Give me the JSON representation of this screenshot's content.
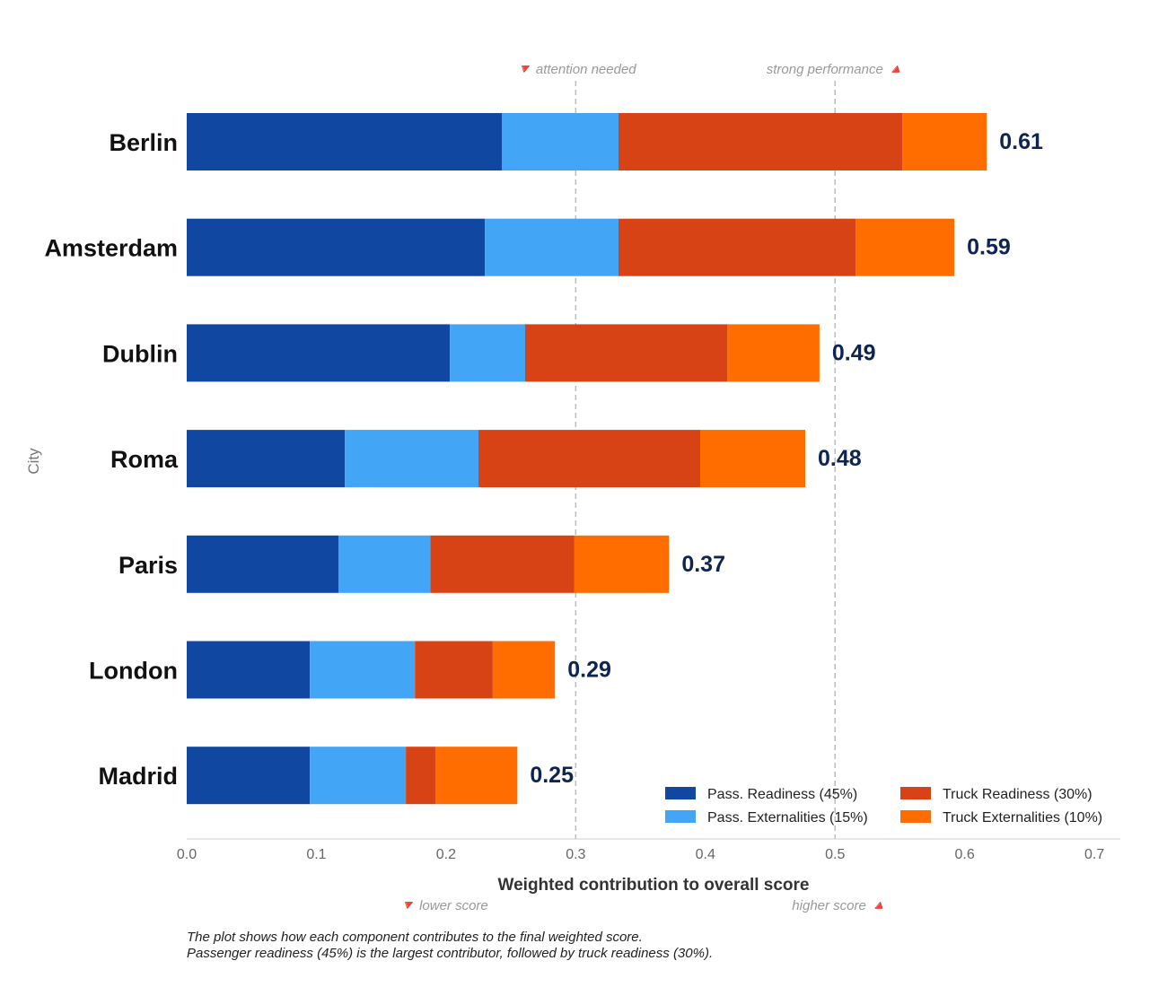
{
  "chart_data": {
    "type": "bar",
    "orientation": "horizontal",
    "stacked": true,
    "categories": [
      "Berlin",
      "Amsterdam",
      "Dublin",
      "Roma",
      "Paris",
      "London",
      "Madrid"
    ],
    "series": [
      {
        "name": "Pass. Readiness (45%)",
        "color": "#0f47a1",
        "values": [
          0.243,
          0.23,
          0.203,
          0.122,
          0.117,
          0.095,
          0.095
        ]
      },
      {
        "name": "Pass. Externalities (15%)",
        "color": "#42a5f5",
        "values": [
          0.09,
          0.103,
          0.058,
          0.103,
          0.071,
          0.081,
          0.074
        ]
      },
      {
        "name": "Truck Readiness (30%)",
        "color": "#d84315",
        "values": [
          0.219,
          0.183,
          0.156,
          0.171,
          0.111,
          0.06,
          0.023
        ]
      },
      {
        "name": "Truck Externalities (10%)",
        "color": "#ff6d00",
        "values": [
          0.065,
          0.076,
          0.071,
          0.081,
          0.073,
          0.048,
          0.063
        ]
      }
    ],
    "totals": [
      "0.61",
      "0.59",
      "0.49",
      "0.48",
      "0.37",
      "0.29",
      "0.25"
    ],
    "xlim": [
      0,
      0.72
    ],
    "xticks": [
      "0.0",
      "0.1",
      "0.2",
      "0.3",
      "0.4",
      "0.5",
      "0.6",
      "0.7"
    ],
    "xlabel": "Weighted contribution to overall score",
    "ylabel": "City",
    "reference_lines": [
      {
        "x": 0.3,
        "label": "🔻 attention needed"
      },
      {
        "x": 0.5,
        "label": "strong performance 🔺"
      }
    ],
    "axis_hints": {
      "left": "🔻 lower score",
      "right": "higher score 🔺"
    },
    "legend_position": "lower-right",
    "grid": false,
    "caption_lines": [
      "The plot shows how each component contributes to the final weighted score.",
      "Passenger readiness (45%) is the largest contributor, followed by truck readiness (30%)."
    ]
  }
}
